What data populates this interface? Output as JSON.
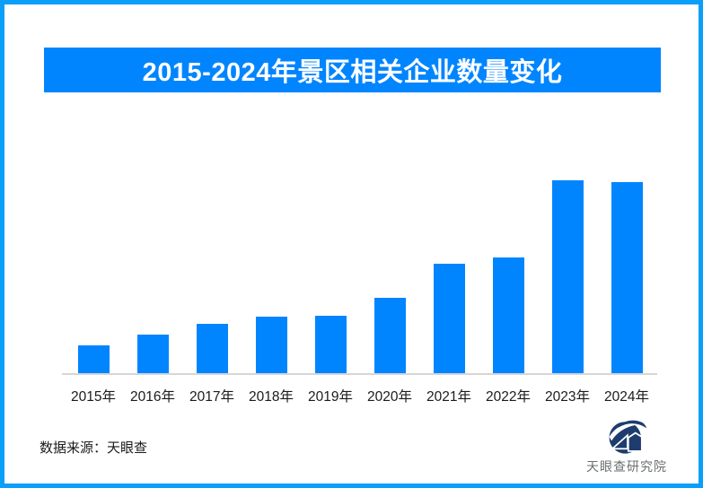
{
  "page": {
    "border_color": "#0A9FF9",
    "background": "#ffffff"
  },
  "title": {
    "text": "2015-2024年景区相关企业数量变化",
    "bg_color": "#0085FF",
    "text_color": "#ffffff"
  },
  "chart_data": {
    "type": "bar",
    "title": "2015-2024年景区相关企业数量变化",
    "categories": [
      "2015年",
      "2016年",
      "2017年",
      "2018年",
      "2019年",
      "2020年",
      "2021年",
      "2022年",
      "2023年",
      "2024年"
    ],
    "values": [
      32,
      44,
      56,
      64,
      65,
      85,
      123,
      130,
      216,
      214
    ],
    "xlabel": "",
    "ylabel": "",
    "ylim": [
      0,
      230
    ],
    "bar_color": "#0085FF",
    "axis_line_color": "#D6D6D6",
    "grid": false,
    "legend": false,
    "data_labels": false
  },
  "source": {
    "label": "数据来源：天眼查"
  },
  "logo": {
    "icon": "tianyancha-eye-emblem",
    "text": "天眼查研究院",
    "emblem_color": "#1E3C6E",
    "text_color": "#6B6F72"
  }
}
